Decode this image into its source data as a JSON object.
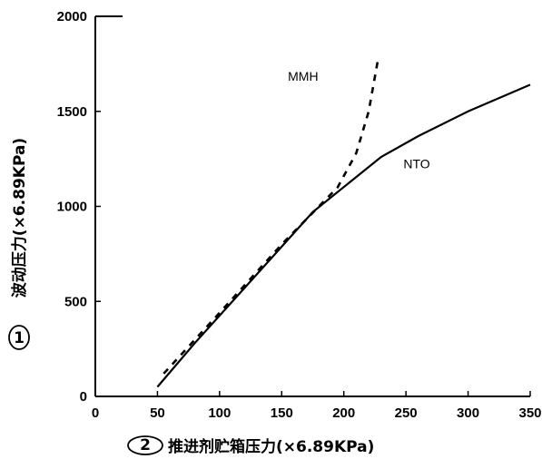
{
  "chart_data": {
    "type": "line",
    "title": "",
    "xlabel": "推进剂贮箱压力(×6.89KPa)",
    "ylabel": "波动压力(×6.89KPa)",
    "x_marker": "2",
    "y_marker": "1",
    "xlim": [
      0,
      350
    ],
    "ylim": [
      0,
      2000
    ],
    "x_ticks": [
      0,
      50,
      100,
      150,
      200,
      250,
      300,
      350
    ],
    "y_ticks": [
      0,
      500,
      1000,
      1500,
      2000
    ],
    "grid": false,
    "series": [
      {
        "name": "NTO",
        "style": "solid",
        "x": [
          50,
          80,
          120,
          175,
          230,
          260,
          300,
          350
        ],
        "y": [
          50,
          280,
          570,
          970,
          1260,
          1370,
          1500,
          1640
        ]
      },
      {
        "name": "MMH",
        "style": "dashed",
        "x": [
          55,
          100,
          150,
          195,
          210,
          220,
          228
        ],
        "y": [
          120,
          440,
          800,
          1100,
          1280,
          1500,
          1790
        ]
      }
    ]
  }
}
